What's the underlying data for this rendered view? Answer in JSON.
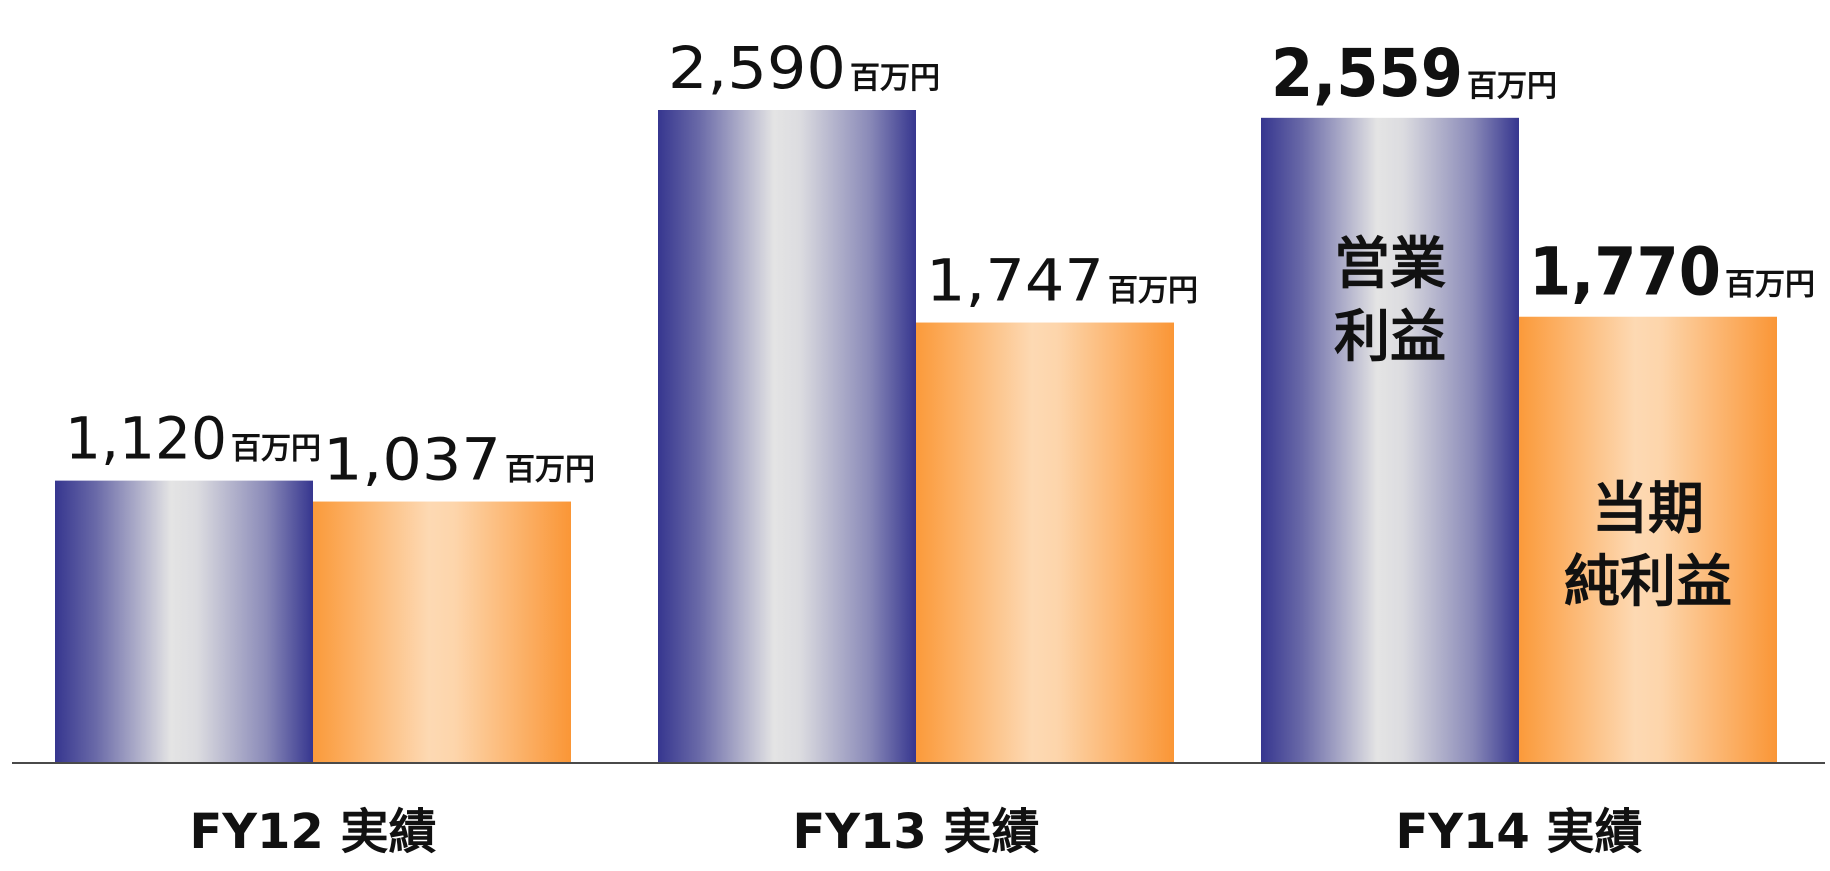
{
  "chart_data": {
    "type": "bar",
    "categories": [
      "FY12 実績",
      "FY13 実績",
      "FY14 実績"
    ],
    "series": [
      {
        "name": "営業利益",
        "name_lines": [
          "営業",
          "利益"
        ],
        "values": [
          1120,
          2590,
          2559
        ],
        "color": "#3b3b96"
      },
      {
        "name": "当期純利益",
        "name_lines": [
          "当期",
          "純利益"
        ],
        "values": [
          1037,
          1747,
          1770
        ],
        "color": "#fa9a3c"
      }
    ],
    "value_labels": [
      [
        "1,120",
        "2,590",
        "2,559"
      ],
      [
        "1,037",
        "1,747",
        "1,770"
      ]
    ],
    "unit": "百万円",
    "highlight_category_index": 2,
    "ylim": [
      0,
      2700
    ],
    "grid": false,
    "legend": "inside-last-bars"
  }
}
